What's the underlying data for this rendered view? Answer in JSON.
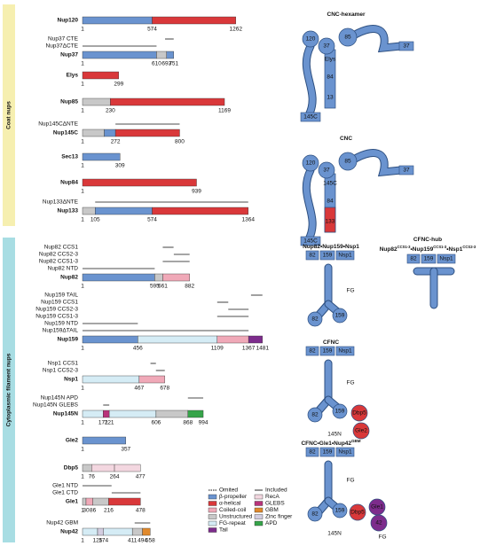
{
  "sections": [
    {
      "label": "Coat nups",
      "proteins": [
        {
          "name": "Nup120",
          "ticks": [
            1,
            574,
            1262
          ],
          "domains": [
            {
              "from": 1,
              "to": 574,
              "kind": "β-propeller"
            },
            {
              "from": 574,
              "to": 1262,
              "kind": "α-helical"
            }
          ],
          "constructs": []
        },
        {
          "name": "Nup37",
          "ticks": [
            1,
            610,
            693,
            751
          ],
          "domains": [
            {
              "from": 1,
              "to": 610,
              "kind": "β-propeller"
            },
            {
              "from": 610,
              "to": 693,
              "kind": "Unstructured"
            },
            {
              "from": 693,
              "to": 751,
              "kind": "β-propeller"
            }
          ],
          "constructs": [
            {
              "label": "Nup37 CTE",
              "from": 680,
              "to": 751
            },
            {
              "label": "Nup37ΔCTE",
              "from": 1,
              "to": 610
            }
          ]
        },
        {
          "name": "Elys",
          "ticks": [
            1,
            299
          ],
          "domains": [
            {
              "from": 1,
              "to": 299,
              "kind": "α-helical"
            }
          ],
          "constructs": []
        },
        {
          "name": "Nup85",
          "ticks": [
            1,
            230,
            1169
          ],
          "domains": [
            {
              "from": 1,
              "to": 230,
              "kind": "Unstructured"
            },
            {
              "from": 230,
              "to": 1169,
              "kind": "α-helical"
            }
          ],
          "constructs": []
        },
        {
          "name": "Nup145C",
          "ticks": [
            1,
            272,
            800
          ],
          "domains": [
            {
              "from": 1,
              "to": 180,
              "kind": "Unstructured"
            },
            {
              "from": 180,
              "to": 272,
              "kind": "β-propeller"
            },
            {
              "from": 272,
              "to": 800,
              "kind": "α-helical"
            }
          ],
          "constructs": [
            {
              "label": "Nup145CΔNTE",
              "from": 272,
              "to": 800
            }
          ]
        },
        {
          "name": "Sec13",
          "ticks": [
            1,
            309
          ],
          "domains": [
            {
              "from": 1,
              "to": 309,
              "kind": "β-propeller"
            }
          ],
          "constructs": []
        },
        {
          "name": "Nup84",
          "ticks": [
            1,
            939
          ],
          "domains": [
            {
              "from": 1,
              "to": 939,
              "kind": "α-helical"
            }
          ],
          "constructs": []
        },
        {
          "name": "Nup133",
          "ticks": [
            1,
            105,
            574,
            1364
          ],
          "domains": [
            {
              "from": 1,
              "to": 105,
              "kind": "Unstructured"
            },
            {
              "from": 105,
              "to": 574,
              "kind": "β-propeller"
            },
            {
              "from": 574,
              "to": 1364,
              "kind": "α-helical"
            }
          ],
          "constructs": [
            {
              "label": "Nup133ΔNTE",
              "from": 105,
              "to": 1364
            }
          ]
        }
      ]
    },
    {
      "label": "Cytoplasmic filament nups",
      "proteins": [
        {
          "name": "Nup82",
          "ticks": [
            1,
            595,
            661,
            882
          ],
          "domains": [
            {
              "from": 1,
              "to": 595,
              "kind": "β-propeller"
            },
            {
              "from": 595,
              "to": 661,
              "kind": "Unstructured"
            },
            {
              "from": 661,
              "to": 882,
              "kind": "Coiled-coil"
            }
          ],
          "constructs": [
            {
              "label": "Nup82 CCS1",
              "from": 661,
              "to": 750
            },
            {
              "label": "Nup82 CCS2-3",
              "from": 752,
              "to": 882
            },
            {
              "label": "Nup82 CCS1-3",
              "from": 661,
              "to": 882
            },
            {
              "label": "Nup82 NTD",
              "from": 1,
              "to": 595
            }
          ]
        },
        {
          "name": "Nup159",
          "ticks": [
            1,
            456,
            1109,
            1367,
            1481
          ],
          "domains": [
            {
              "from": 1,
              "to": 456,
              "kind": "β-propeller"
            },
            {
              "from": 456,
              "to": 1109,
              "kind": "FG-repeat"
            },
            {
              "from": 1109,
              "to": 1367,
              "kind": "Coiled-coil"
            },
            {
              "from": 1367,
              "to": 1481,
              "kind": "Tail"
            }
          ],
          "constructs": [
            {
              "label": "Nup159 TAIL",
              "from": 1387,
              "to": 1481
            },
            {
              "label": "Nup159 CCS1",
              "from": 1109,
              "to": 1200
            },
            {
              "label": "Nup159 CCS2-3",
              "from": 1200,
              "to": 1367
            },
            {
              "label": "Nup159 CCS1-3",
              "from": 1109,
              "to": 1367
            },
            {
              "label": "Nup159 NTD",
              "from": 1,
              "to": 456
            },
            {
              "label": "Nup159ΔTAIL",
              "from": 1,
              "to": 1367
            }
          ]
        },
        {
          "name": "Nsp1",
          "ticks": [
            1,
            467,
            678
          ],
          "domains": [
            {
              "from": 1,
              "to": 467,
              "kind": "FG-repeat"
            },
            {
              "from": 467,
              "to": 678,
              "kind": "Coiled-coil"
            }
          ],
          "constructs": [
            {
              "label": "Nsp1 CCS1",
              "from": 560,
              "to": 605
            },
            {
              "label": "Nsp1 CCS2-3",
              "from": 605,
              "to": 678
            }
          ]
        },
        {
          "name": "Nup145N",
          "ticks": [
            1,
            171,
            221,
            606,
            868,
            994
          ],
          "domains": [
            {
              "from": 1,
              "to": 171,
              "kind": "FG-repeat"
            },
            {
              "from": 171,
              "to": 221,
              "kind": "GLEBS"
            },
            {
              "from": 221,
              "to": 606,
              "kind": "FG-repeat"
            },
            {
              "from": 606,
              "to": 868,
              "kind": "Unstructured"
            },
            {
              "from": 868,
              "to": 994,
              "kind": "APD"
            }
          ],
          "constructs": [
            {
              "label": "Nup145N APD",
              "from": 868,
              "to": 994
            },
            {
              "label": "Nup145N GLEBS",
              "from": 171,
              "to": 221
            }
          ]
        },
        {
          "name": "Gle2",
          "ticks": [
            1,
            357
          ],
          "domains": [
            {
              "from": 1,
              "to": 357,
              "kind": "β-propeller"
            }
          ],
          "constructs": []
        },
        {
          "name": "Dbp5",
          "ticks": [
            1,
            76,
            264,
            477
          ],
          "domains": [
            {
              "from": 1,
              "to": 76,
              "kind": "Unstructured"
            },
            {
              "from": 76,
              "to": 264,
              "kind": "RecA"
            },
            {
              "from": 264,
              "to": 477,
              "kind": "RecA"
            }
          ],
          "constructs": []
        },
        {
          "name": "Gle1",
          "ticks": [
            1,
            30,
            86,
            216,
            478
          ],
          "domains": [
            {
              "from": 1,
              "to": 30,
              "kind": "Unstructured"
            },
            {
              "from": 30,
              "to": 86,
              "kind": "Coiled-coil"
            },
            {
              "from": 86,
              "to": 216,
              "kind": "Unstructured"
            },
            {
              "from": 216,
              "to": 478,
              "kind": "α-helical"
            }
          ],
          "constructs": [
            {
              "label": "Gle1 NTD",
              "from": 1,
              "to": 240
            },
            {
              "label": "Gle1 CTD",
              "from": 241,
              "to": 478
            }
          ]
        },
        {
          "name": "Nup42",
          "ticks": [
            1,
            125,
            174,
            411,
            494,
            558
          ],
          "domains": [
            {
              "from": 1,
              "to": 125,
              "kind": "FG-repeat"
            },
            {
              "from": 125,
              "to": 174,
              "kind": "Zinc finger"
            },
            {
              "from": 174,
              "to": 411,
              "kind": "FG-repeat"
            },
            {
              "from": 411,
              "to": 494,
              "kind": "Unstructured"
            },
            {
              "from": 494,
              "to": 558,
              "kind": "GBM"
            }
          ],
          "constructs": [
            {
              "label": "Nup42 GBM",
              "from": 430,
              "to": 558
            }
          ]
        }
      ]
    }
  ],
  "legend": [
    {
      "label": "Omited",
      "line": "dashed"
    },
    {
      "label": "Included",
      "line": "solid"
    },
    {
      "label": "β-propeller",
      "color": "#6a93cf"
    },
    {
      "label": "RecA",
      "color": "#f3d7e0"
    },
    {
      "label": "α-helical",
      "color": "#d9383a"
    },
    {
      "label": "GLEBS",
      "color": "#b8337a"
    },
    {
      "label": "Coiled-coil",
      "color": "#f0a9b8"
    },
    {
      "label": "GBM",
      "color": "#e0892c"
    },
    {
      "label": "Unstructured",
      "color": "#c8c8c8"
    },
    {
      "label": "Zinc finger",
      "color": "#d3cde0"
    },
    {
      "label": "FG-repeat",
      "color": "#d5ecf5"
    },
    {
      "label": "APD",
      "color": "#36a44a"
    },
    {
      "label": "Tail",
      "color": "#7d2c8c"
    }
  ],
  "schematics": [
    {
      "title": "CNC-hexamer",
      "labels": [
        "120",
        "37",
        "85",
        "Elys",
        "84",
        "13",
        "145C",
        "37"
      ]
    },
    {
      "title": "CNC",
      "labels": [
        "120",
        "37",
        "85",
        "145C",
        "84",
        "133",
        "145C",
        "37"
      ]
    },
    {
      "title": "Nup82•Nup159•Nsp1",
      "boxes": [
        "82",
        "159",
        "Nsp1"
      ],
      "labels": [
        "FG",
        "82",
        "159"
      ]
    },
    {
      "title": "CFNC-hub",
      "subtitle": [
        "Nup82",
        "CCS1-3",
        "•Nup159",
        "CCS1-3",
        "•Nsp1",
        "CCS2-3"
      ],
      "boxes": [
        "82",
        "159",
        "Nsp1"
      ]
    },
    {
      "title": "CFNC",
      "boxes": [
        "82",
        "159",
        "Nsp1"
      ],
      "labels": [
        "FG",
        "82",
        "159",
        "Dbp5",
        "145N",
        "Gle2"
      ]
    },
    {
      "title": "CFNC•Gle1•Nup42",
      "title_sup": "GBM",
      "boxes": [
        "82",
        "159",
        "Nsp1"
      ],
      "labels": [
        "FG",
        "82",
        "159",
        "Dbp5",
        "Gle1",
        "42",
        "145N",
        "FG"
      ]
    }
  ]
}
